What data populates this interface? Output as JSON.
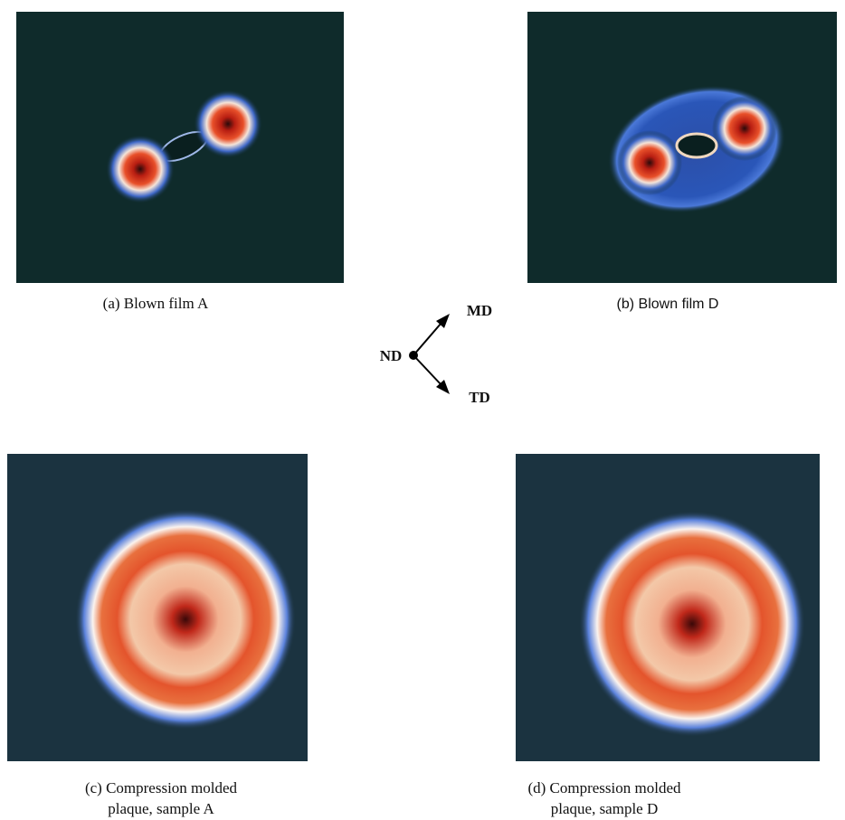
{
  "panels": [
    {
      "caption": [
        "(a) Blown film A"
      ]
    },
    {
      "caption": [
        "(b) Blown film D"
      ]
    },
    {
      "caption": [
        "(c) Compression molded",
        "plaque, sample A"
      ]
    },
    {
      "caption": [
        "(d) Compression molded",
        "plaque, sample D"
      ]
    }
  ],
  "orientation": {
    "center": "ND",
    "up": "MD",
    "down": "TD"
  }
}
